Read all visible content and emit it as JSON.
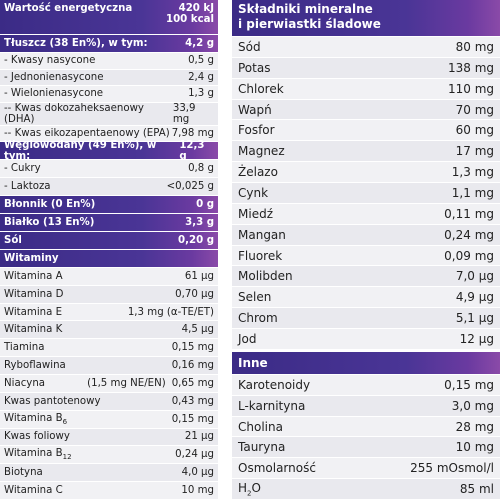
{
  "left": {
    "energy": {
      "label": "Wartość energetyczna",
      "values": [
        "420 kJ",
        "100 kcal"
      ]
    },
    "sections": [
      {
        "name": "Tłuszcz (38 En%), w tym:",
        "value": "4,2 g",
        "items": [
          {
            "name": "- Kwasy nasycone",
            "value": "0,5 g"
          },
          {
            "name": "- Jednonienasycone",
            "value": "2,4 g"
          },
          {
            "name": "- Wielonienasycone",
            "value": "1,3 g"
          },
          {
            "name": "-- Kwas dokozaheksaenowy (DHA)",
            "value": "33,9 mg"
          },
          {
            "name": "-- Kwas eikozapentaenowy (EPA)",
            "value": "7,98 mg"
          }
        ]
      },
      {
        "name": "Węglowodany (49 En%), w tym:",
        "value": "12,3 g",
        "items": [
          {
            "name": "- Cukry",
            "value": "0,8 g"
          },
          {
            "name": "- Laktoza",
            "value": "<0,025 g"
          }
        ]
      },
      {
        "name": "Błonnik (0 En%)",
        "value": "0 g"
      },
      {
        "name": "Białko (13 En%)",
        "value": "3,3 g"
      },
      {
        "name": "Sól",
        "value": "0,20 g"
      },
      {
        "name": "Witaminy",
        "items": [
          {
            "name": "Witamina A",
            "value": "61 µg"
          },
          {
            "name": "Witamina D",
            "value": "0,70 µg"
          },
          {
            "name": "Witamina E",
            "value": "1,3 mg (α-TE/ET)"
          },
          {
            "name": "Witamina K",
            "value": "4,5 µg"
          },
          {
            "name": "Tiamina",
            "value": "0,15 mg"
          },
          {
            "name": "Ryboflawina",
            "value": "0,16 mg"
          },
          {
            "name": "Niacyna",
            "note": "(1,5 mg NE/EN)",
            "value": "0,65 mg"
          },
          {
            "name": "Kwas pantotenowy",
            "value": "0,43 mg"
          },
          {
            "name": "Witamina B",
            "sub": "6",
            "value": "0,15 mg"
          },
          {
            "name": "Kwas foliowy",
            "value": "21 µg"
          },
          {
            "name": "Witamina B",
            "sub": "12",
            "value": "0,24 µg"
          },
          {
            "name": "Biotyna",
            "value": "4,0 µg"
          },
          {
            "name": "Witamina C",
            "value": "10 mg"
          }
        ]
      }
    ]
  },
  "right": {
    "minerals": {
      "title": [
        "Składniki mineralne",
        "i pierwiastki śladowe"
      ],
      "items": [
        {
          "name": "Sód",
          "value": "80 mg"
        },
        {
          "name": "Potas",
          "value": "138 mg"
        },
        {
          "name": "Chlorek",
          "value": "110 mg"
        },
        {
          "name": "Wapń",
          "value": "70 mg"
        },
        {
          "name": "Fosfor",
          "value": "60 mg"
        },
        {
          "name": "Magnez",
          "value": "17 mg"
        },
        {
          "name": "Żelazo",
          "value": "1,3 mg"
        },
        {
          "name": "Cynk",
          "value": "1,1 mg"
        },
        {
          "name": "Miedź",
          "value": "0,11 mg"
        },
        {
          "name": "Mangan",
          "value": "0,24 mg"
        },
        {
          "name": "Fluorek",
          "value": "0,09 mg"
        },
        {
          "name": "Molibden",
          "value": "7,0 µg"
        },
        {
          "name": "Selen",
          "value": "4,9 µg"
        },
        {
          "name": "Chrom",
          "value": "5,1 µg"
        },
        {
          "name": "Jod",
          "value": "12 µg"
        }
      ]
    },
    "other": {
      "title": "Inne",
      "items": [
        {
          "name": "Karotenoidy",
          "value": "0,15 mg"
        },
        {
          "name": "L-karnityna",
          "value": "3,0 mg"
        },
        {
          "name": "Cholina",
          "value": "28 mg"
        },
        {
          "name": "Tauryna",
          "value": "10 mg"
        },
        {
          "name": "Osmolarność",
          "value": "255 mOsmol/l"
        },
        {
          "name": "H",
          "sub": "2",
          "name_end": "O",
          "value": "85 ml"
        }
      ]
    }
  }
}
